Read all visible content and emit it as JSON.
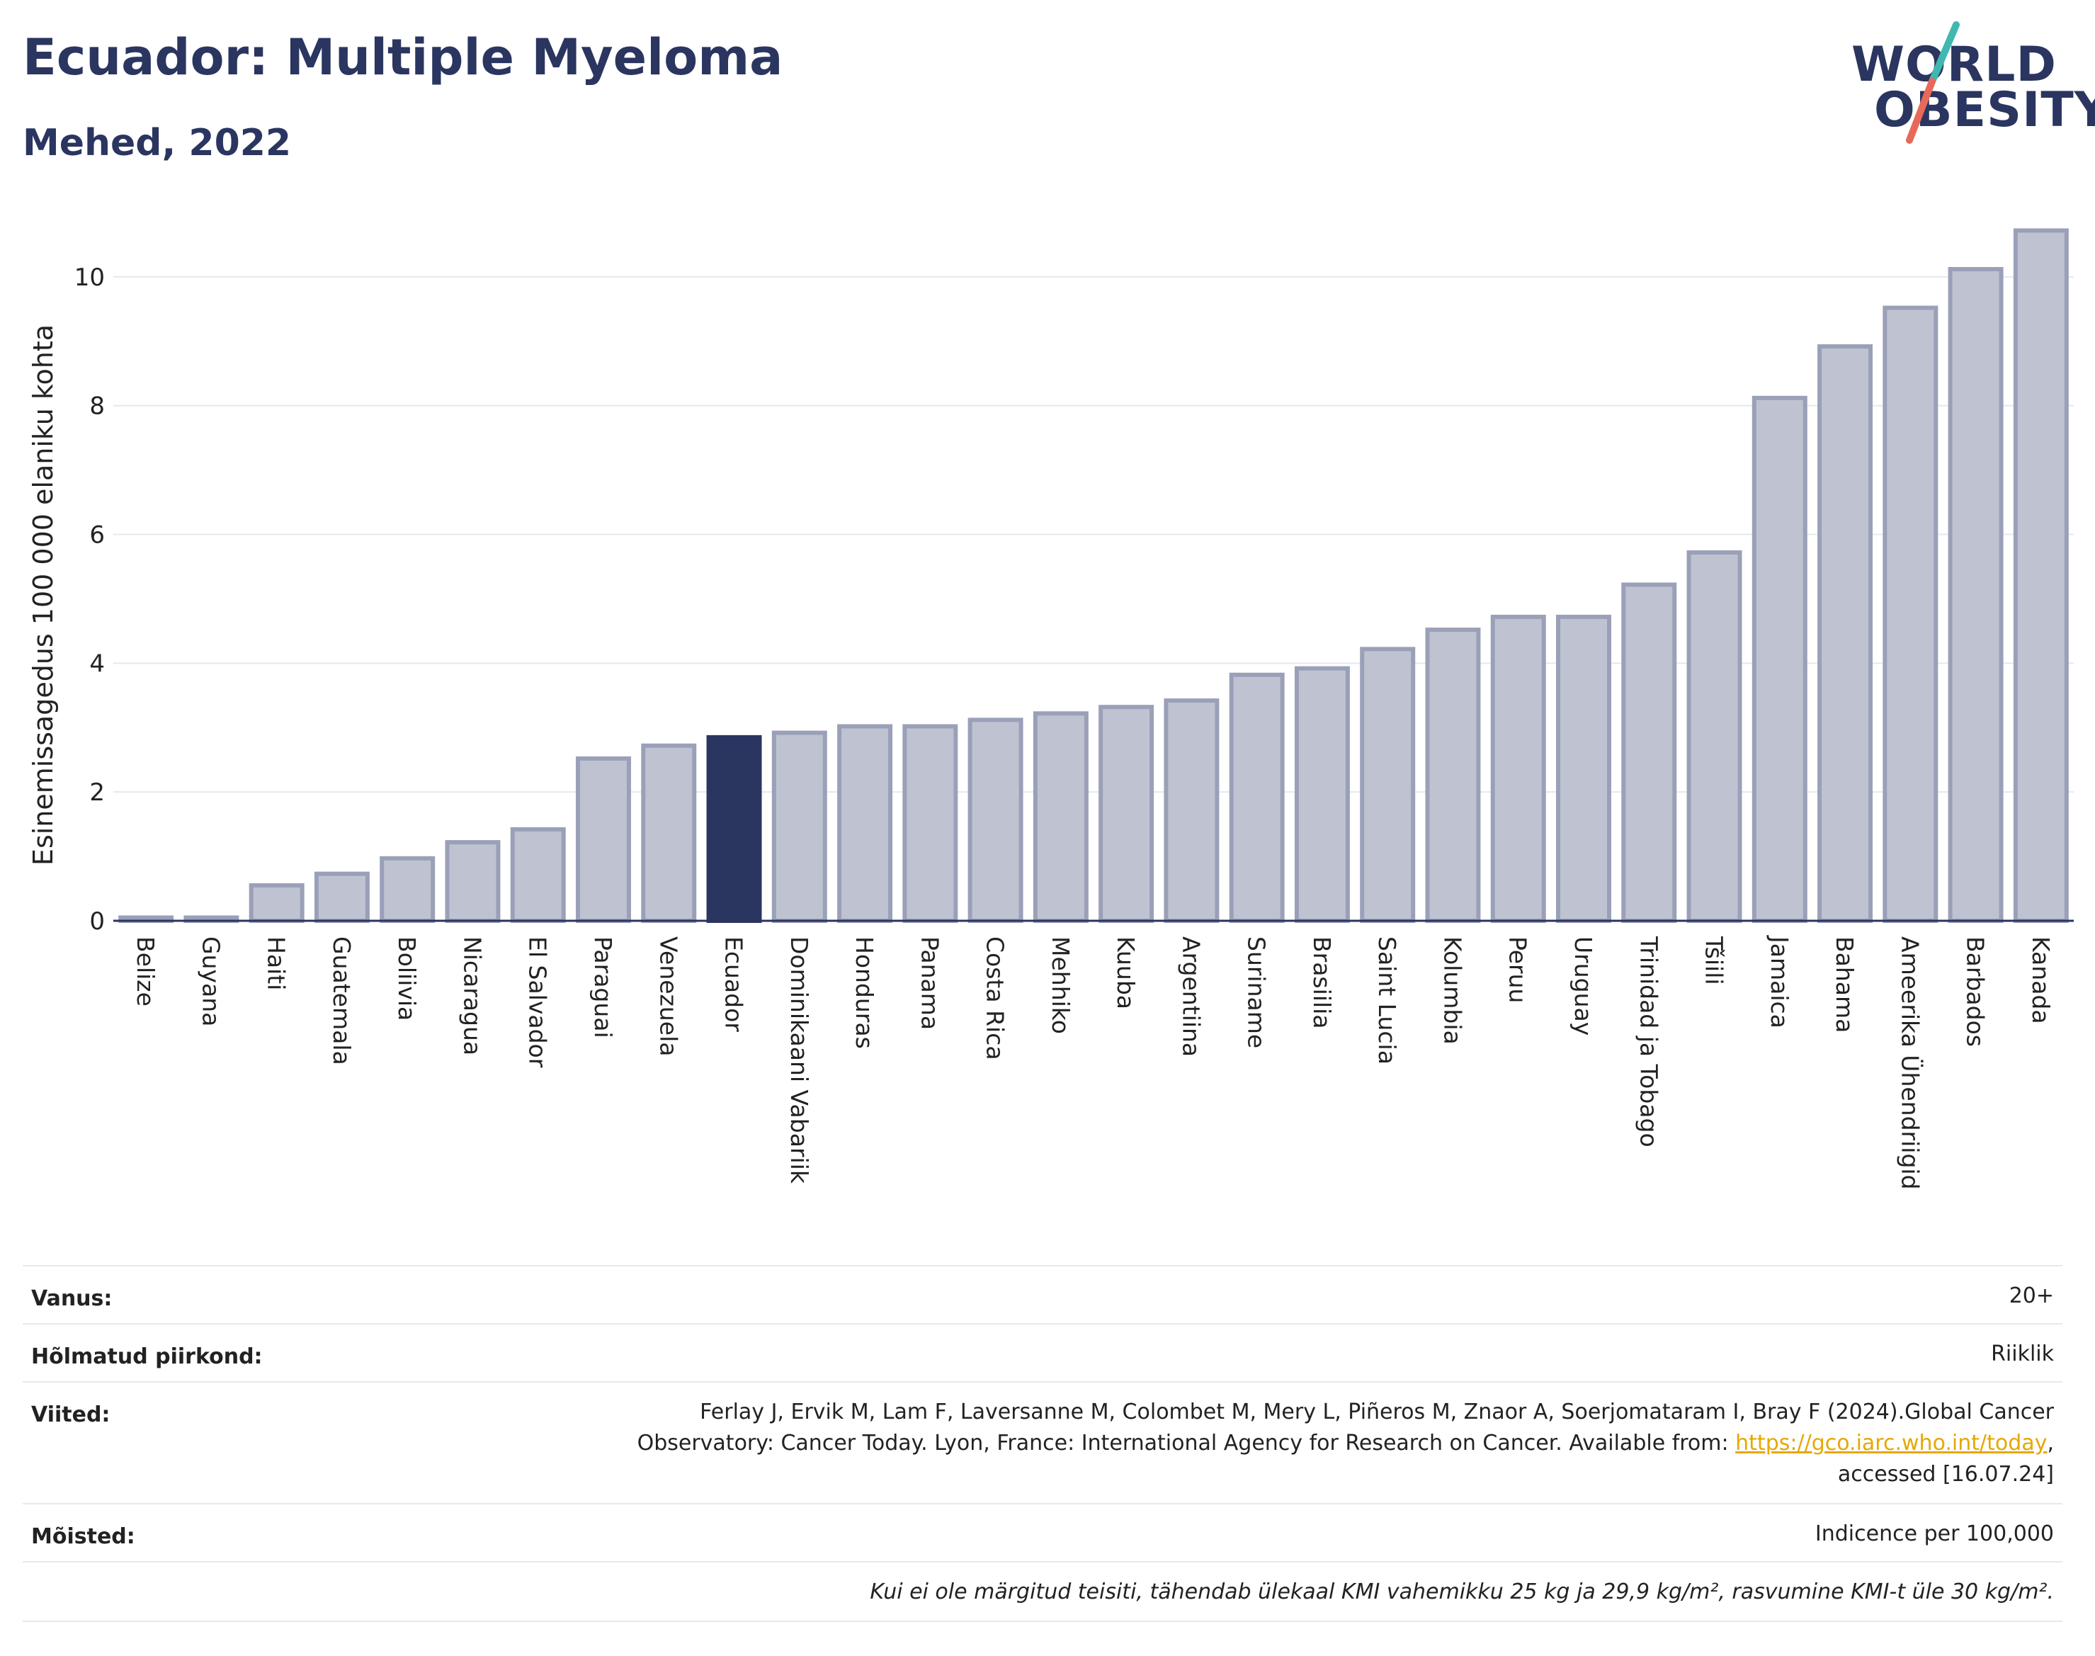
{
  "header": {
    "title": "Ecuador: Multiple Myeloma",
    "subtitle": "Mehed, 2022"
  },
  "logo": {
    "line1": "WORLD",
    "line2": "OBESITY",
    "slash_colors": [
      "#3fb8b0",
      "#e8695a"
    ]
  },
  "colors": {
    "bar": "#bfc3d1",
    "bar_border": "#9aa0b8",
    "highlight": "#2a3560",
    "grid": "#e6e8ef"
  },
  "chart_data": {
    "type": "bar",
    "ylabel": "Esinemissagedus 100 000 elaniku kohta",
    "xlabel": "",
    "ylim": [
      0,
      11
    ],
    "yticks": [
      0,
      2,
      4,
      6,
      8,
      10
    ],
    "grid": true,
    "highlight": "Ecuador",
    "categories": [
      "Belize",
      "Guyana",
      "Haiti",
      "Guatemala",
      "Boliivia",
      "Nicaragua",
      "El Salvador",
      "Paraguai",
      "Venezuela",
      "Ecuador",
      "Dominikaani Vabariik",
      "Honduras",
      "Panama",
      "Costa Rica",
      "Mehhiko",
      "Kuuba",
      "Argentiina",
      "Suriname",
      "Brasiilia",
      "Saint Lucia",
      "Kolumbia",
      "Peruu",
      "Uruguay",
      "Trinidad ja Tobago",
      "Tšiili",
      "Jamaica",
      "Bahama",
      "Ameerika Ühendriigid",
      "Barbados",
      "Kanada"
    ],
    "values": [
      0.05,
      0.05,
      0.55,
      0.73,
      0.97,
      1.22,
      1.42,
      2.52,
      2.72,
      2.85,
      2.92,
      3.02,
      3.02,
      3.12,
      3.22,
      3.32,
      3.42,
      3.82,
      3.92,
      4.22,
      4.52,
      4.72,
      4.72,
      5.22,
      5.72,
      8.12,
      8.92,
      9.52,
      10.12,
      10.72
    ]
  },
  "info": {
    "age_label": "Vanus:",
    "age_value": "20+",
    "region_label": "Hõlmatud piirkond:",
    "region_value": "Riiklik",
    "refs_label": "Viited:",
    "refs_line1": "Ferlay J, Ervik M, Lam F, Laversanne M, Colombet M, Mery L, Piñeros M, Znaor A, Soerjomataram I, Bray F (2024).Global Cancer",
    "refs_line2": "Observatory: Cancer Today. Lyon, France: International Agency for Research on Cancer. Available from: ",
    "refs_link": "https://gco.iarc.who.int/today",
    "refs_line2_end": ",",
    "refs_line3": "accessed [16.07.24]",
    "defs_label": "Mõisted:",
    "defs_value": "Indicence per 100,000",
    "note": "Kui ei ole märgitud teisiti, tähendab ülekaal KMI vahemikku 25 kg ja 29,9 kg/m², rasvumine KMI-t üle 30 kg/m²."
  }
}
